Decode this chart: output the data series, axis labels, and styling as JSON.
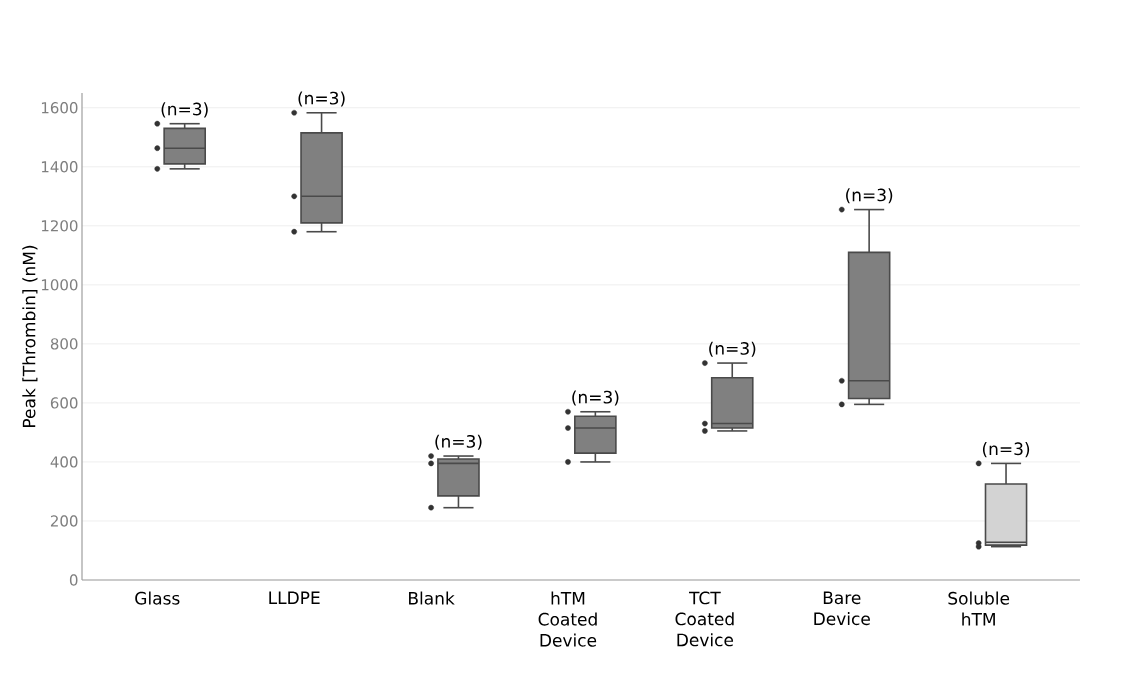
{
  "chart_data": {
    "type": "box",
    "ylabel": "Peak [Thrombin] (nM)",
    "categories": [
      "Glass",
      "LLDPE",
      "Blank",
      "hTM Coated Device",
      "TCT Coated Device",
      "Bare Device",
      "Soluble hTM"
    ],
    "ylim": [
      0,
      1650
    ],
    "yticks": [
      0,
      200,
      400,
      600,
      800,
      1000,
      1200,
      1400,
      1600
    ],
    "grid": "y",
    "series": [
      {
        "type": "scatter",
        "color": "#333333",
        "marker": "circle",
        "x": [
          "Glass",
          "Glass",
          "Glass",
          "LLDPE",
          "LLDPE",
          "LLDPE",
          "Blank",
          "Blank",
          "Blank",
          "hTM Coated Device",
          "hTM Coated Device",
          "hTM Coated Device",
          "TCT Coated Device",
          "TCT Coated Device",
          "TCT Coated Device",
          "Bare Device",
          "Bare Device",
          "Bare Device",
          "Soluble hTM",
          "Soluble hTM",
          "Soluble hTM"
        ],
        "values": [
          1546,
          1463,
          1393,
          1583,
          1300,
          1180,
          420,
          395,
          245,
          570,
          515,
          400,
          735,
          530,
          505,
          1255,
          675,
          595,
          395,
          125,
          113
        ]
      },
      {
        "colors": [
          "#808080",
          "#808080",
          "#808080",
          "#808080",
          "#808080",
          "#808080",
          "#d3d3d3"
        ],
        "boxes": [
          {
            "low": 1393,
            "q1": 1410,
            "median": 1463,
            "q3": 1530,
            "high": 1546
          },
          {
            "low": 1180,
            "q1": 1210,
            "median": 1300,
            "q3": 1515,
            "high": 1583
          },
          {
            "low": 245,
            "q1": 285,
            "median": 395,
            "q3": 410,
            "high": 420
          },
          {
            "low": 400,
            "q1": 430,
            "median": 515,
            "q3": 555,
            "high": 570
          },
          {
            "low": 505,
            "q1": 515,
            "median": 530,
            "q3": 685,
            "high": 735
          },
          {
            "low": 595,
            "q1": 615,
            "median": 675,
            "q3": 1110,
            "high": 1255
          },
          {
            "low": 113,
            "q1": 118,
            "median": 128,
            "q3": 325,
            "high": 395
          }
        ]
      }
    ],
    "annotations": [
      "(n=3)",
      "(n=3)",
      "(n=3)",
      "(n=3)",
      "(n=3)",
      "(n=3)",
      "(n=3)"
    ]
  }
}
